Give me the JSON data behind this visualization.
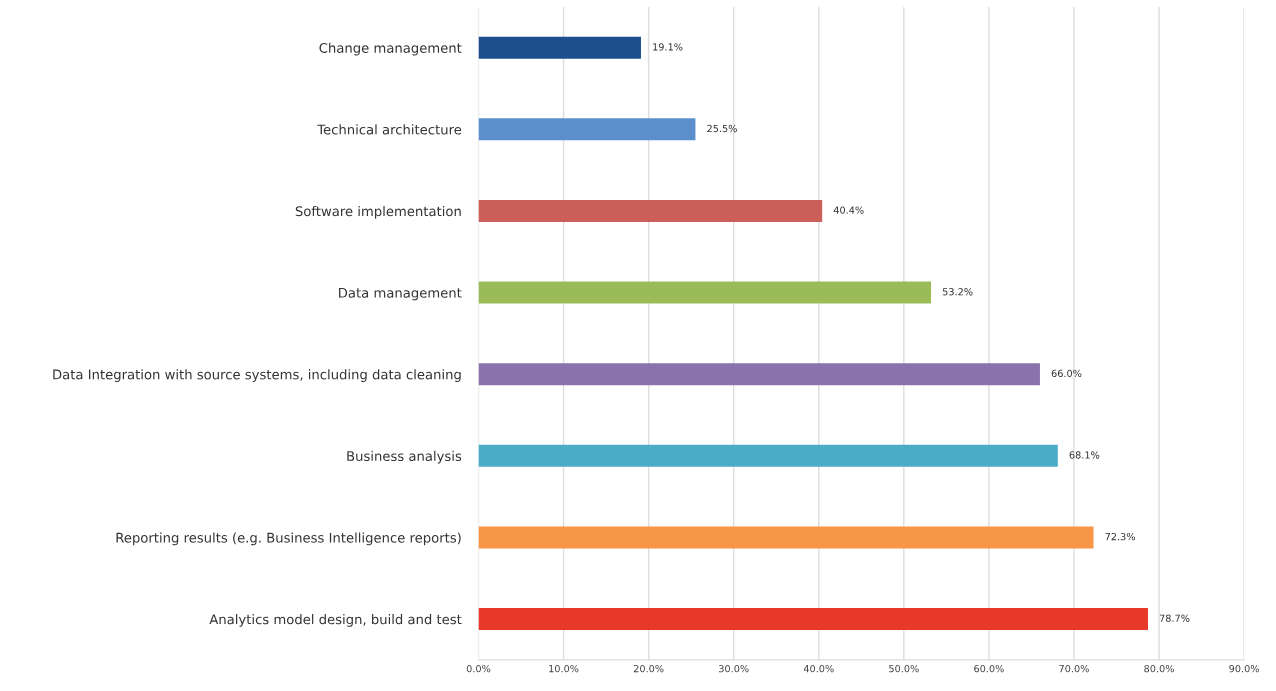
{
  "chart_data": {
    "type": "bar",
    "orientation": "horizontal",
    "categories": [
      "Change management",
      "Technical architecture",
      "Software implementation",
      "Data management",
      "Data Integration with source systems, including data cleaning",
      "Business analysis",
      "Reporting results (e.g. Business Intelligence reports)",
      "Analytics model design, build and test"
    ],
    "values": [
      19.1,
      25.5,
      40.4,
      53.2,
      66.0,
      68.1,
      72.3,
      78.7
    ],
    "colors": [
      "#1f4e8c",
      "#5b8fcc",
      "#cc5f5a",
      "#9bbb59",
      "#8a72ac",
      "#4bacc6",
      "#f79646",
      "#e8382a"
    ],
    "value_labels": [
      "19.1%",
      "25.5%",
      "40.4%",
      "53.2%",
      "66.0%",
      "68.1%",
      "72.3%",
      "78.7%"
    ],
    "xlim": [
      0,
      90
    ],
    "xticks": [
      {
        "value": 0,
        "label": "0.0%"
      },
      {
        "value": 10,
        "label": "10.0%"
      },
      {
        "value": 20,
        "label": "20.0%"
      },
      {
        "value": 30,
        "label": "30.0%"
      },
      {
        "value": 40,
        "label": "40.0%"
      },
      {
        "value": 50,
        "label": "50.0%"
      },
      {
        "value": 60,
        "label": "60.0%"
      },
      {
        "value": 70,
        "label": "70.0%"
      },
      {
        "value": 80,
        "label": "80.0%"
      },
      {
        "value": 90,
        "label": "90.0%"
      }
    ],
    "grid": "x",
    "legend": false
  }
}
